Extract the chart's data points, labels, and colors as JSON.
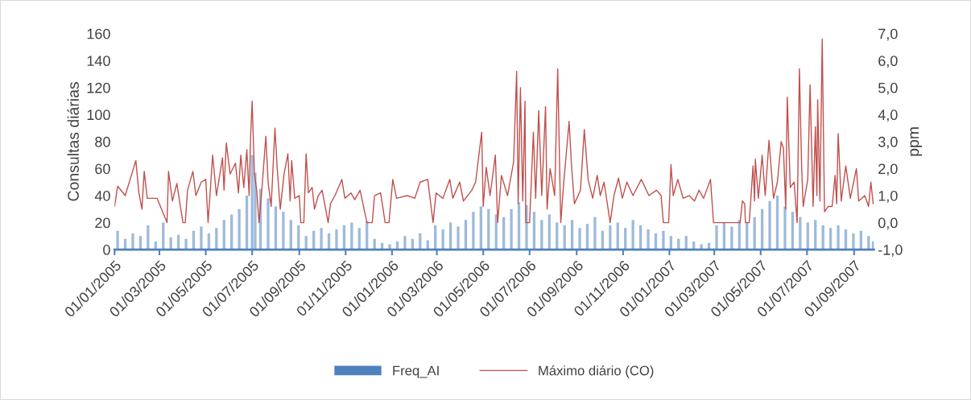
{
  "chart_data": {
    "type": "bar",
    "ylabel": "Consultas diárias",
    "y2label": "ppm",
    "xlim": [
      "2005-01-01",
      "2007-09-27"
    ],
    "xticks": [
      {
        "value": "2005-01-01",
        "label": "01/01/2005"
      },
      {
        "value": "2005-03-01",
        "label": "01/03/2005"
      },
      {
        "value": "2005-05-01",
        "label": "01/05/2005"
      },
      {
        "value": "2005-07-01",
        "label": "01/07/2005"
      },
      {
        "value": "2005-09-01",
        "label": "01/09/2005"
      },
      {
        "value": "2005-11-01",
        "label": "01/11/2005"
      },
      {
        "value": "2006-01-01",
        "label": "01/01/2006"
      },
      {
        "value": "2006-03-01",
        "label": "01/03/2006"
      },
      {
        "value": "2006-05-01",
        "label": "01/05/2006"
      },
      {
        "value": "2006-07-01",
        "label": "01/07/2006"
      },
      {
        "value": "2006-09-01",
        "label": "01/09/2006"
      },
      {
        "value": "2006-11-01",
        "label": "01/11/2006"
      },
      {
        "value": "2007-01-01",
        "label": "01/01/2007"
      },
      {
        "value": "2007-03-01",
        "label": "01/03/2007"
      },
      {
        "value": "2007-05-01",
        "label": "01/05/2007"
      },
      {
        "value": "2007-07-01",
        "label": "01/07/2007"
      },
      {
        "value": "2007-09-01",
        "label": "01/09/2007"
      }
    ],
    "ylim": [
      0,
      160
    ],
    "yticks": [
      0,
      20,
      40,
      60,
      80,
      100,
      120,
      140,
      160
    ],
    "y2lim": [
      -1,
      7
    ],
    "y2ticks": [
      {
        "value": -1,
        "label": "-1,0"
      },
      {
        "value": 0,
        "label": "0,0"
      },
      {
        "value": 1,
        "label": "1,0"
      },
      {
        "value": 2,
        "label": "2,0"
      },
      {
        "value": 3,
        "label": "3,0"
      },
      {
        "value": 4,
        "label": "4,0"
      },
      {
        "value": 5,
        "label": "5,0"
      },
      {
        "value": 6,
        "label": "6,0"
      },
      {
        "value": 7,
        "label": "7,0"
      }
    ],
    "legend": "bottom",
    "series": [
      {
        "name": "Freq_AI",
        "color": "#4f81bd",
        "x": [
          "2005-01-05",
          "2005-01-15",
          "2005-01-25",
          "2005-02-04",
          "2005-02-14",
          "2005-02-24",
          "2005-03-06",
          "2005-03-16",
          "2005-03-26",
          "2005-04-05",
          "2005-04-15",
          "2005-04-25",
          "2005-05-05",
          "2005-05-15",
          "2005-05-25",
          "2005-06-04",
          "2005-06-14",
          "2005-06-24",
          "2005-07-01",
          "2005-07-05",
          "2005-07-12",
          "2005-07-22",
          "2005-08-01",
          "2005-08-11",
          "2005-08-21",
          "2005-08-31",
          "2005-09-10",
          "2005-09-20",
          "2005-09-30",
          "2005-10-10",
          "2005-10-20",
          "2005-10-30",
          "2005-11-09",
          "2005-11-19",
          "2005-11-29",
          "2005-12-09",
          "2005-12-19",
          "2005-12-29",
          "2006-01-08",
          "2006-01-18",
          "2006-01-28",
          "2006-02-07",
          "2006-02-17",
          "2006-02-27",
          "2006-03-09",
          "2006-03-19",
          "2006-03-29",
          "2006-04-08",
          "2006-04-18",
          "2006-04-28",
          "2006-05-08",
          "2006-05-18",
          "2006-05-28",
          "2006-06-07",
          "2006-06-17",
          "2006-06-27",
          "2006-07-07",
          "2006-07-17",
          "2006-07-27",
          "2006-08-06",
          "2006-08-16",
          "2006-08-26",
          "2006-09-05",
          "2006-09-15",
          "2006-09-25",
          "2006-10-05",
          "2006-10-15",
          "2006-10-25",
          "2006-11-04",
          "2006-11-14",
          "2006-11-24",
          "2006-12-04",
          "2006-12-14",
          "2006-12-24",
          "2007-01-03",
          "2007-01-13",
          "2007-01-23",
          "2007-02-02",
          "2007-02-12",
          "2007-02-22",
          "2007-03-04",
          "2007-03-14",
          "2007-03-24",
          "2007-04-03",
          "2007-04-13",
          "2007-04-23",
          "2007-05-03",
          "2007-05-13",
          "2007-05-23",
          "2007-06-02",
          "2007-06-12",
          "2007-06-22",
          "2007-07-02",
          "2007-07-12",
          "2007-07-22",
          "2007-08-01",
          "2007-08-11",
          "2007-08-21",
          "2007-08-31",
          "2007-09-10",
          "2007-09-20",
          "2007-09-26"
        ],
        "values": [
          14,
          8,
          12,
          10,
          18,
          6,
          20,
          9,
          11,
          8,
          14,
          17,
          12,
          16,
          22,
          26,
          30,
          40,
          70,
          57,
          45,
          38,
          32,
          28,
          22,
          18,
          10,
          14,
          16,
          12,
          15,
          18,
          20,
          16,
          21,
          8,
          5,
          4,
          6,
          10,
          8,
          12,
          7,
          18,
          15,
          20,
          17,
          22,
          28,
          32,
          30,
          26,
          24,
          30,
          35,
          33,
          28,
          22,
          26,
          20,
          18,
          22,
          16,
          19,
          24,
          14,
          18,
          20,
          16,
          22,
          18,
          15,
          12,
          14,
          10,
          8,
          10,
          6,
          4,
          5,
          18,
          20,
          17,
          22,
          20,
          24,
          30,
          36,
          40,
          32,
          28,
          24,
          20,
          22,
          18,
          16,
          18,
          15,
          12,
          14,
          10,
          6
        ]
      },
      {
        "name": "Máximo diário (CO)",
        "type": "line",
        "axis": "y2",
        "color": "#c0504d",
        "x": [
          "2005-01-01",
          "2005-01-05",
          "2005-01-15",
          "2005-01-29",
          "2005-02-02",
          "2005-02-06",
          "2005-02-09",
          "2005-02-13",
          "2005-02-26",
          "2005-03-11",
          "2005-03-13",
          "2005-03-18",
          "2005-03-24",
          "2005-03-28",
          "2005-04-01",
          "2005-04-04",
          "2005-04-07",
          "2005-04-14",
          "2005-04-18",
          "2005-04-25",
          "2005-05-01",
          "2005-05-04",
          "2005-05-07",
          "2005-05-10",
          "2005-05-15",
          "2005-05-23",
          "2005-05-25",
          "2005-05-28",
          "2005-06-02",
          "2005-06-09",
          "2005-06-13",
          "2005-06-16",
          "2005-06-20",
          "2005-06-24",
          "2005-06-27",
          "2005-06-29",
          "2005-07-01",
          "2005-07-04",
          "2005-07-07",
          "2005-07-10",
          "2005-07-14",
          "2005-07-19",
          "2005-07-22",
          "2005-07-26",
          "2005-07-31",
          "2005-08-03",
          "2005-08-07",
          "2005-08-12",
          "2005-08-17",
          "2005-08-20",
          "2005-08-22",
          "2005-08-26",
          "2005-09-01",
          "2005-09-03",
          "2005-09-07",
          "2005-09-10",
          "2005-09-13",
          "2005-09-18",
          "2005-09-21",
          "2005-09-26",
          "2005-10-01",
          "2005-10-09",
          "2005-10-12",
          "2005-10-18",
          "2005-10-27",
          "2005-10-31",
          "2005-11-08",
          "2005-11-13",
          "2005-11-20",
          "2005-11-29",
          "2005-12-06",
          "2005-12-09",
          "2005-12-17",
          "2005-12-23",
          "2005-12-28",
          "2006-01-02",
          "2006-01-07",
          "2006-01-21",
          "2006-01-31",
          "2006-02-07",
          "2006-02-17",
          "2006-02-24",
          "2006-02-28",
          "2006-03-09",
          "2006-03-18",
          "2006-03-22",
          "2006-03-31",
          "2006-04-05",
          "2006-04-16",
          "2006-04-21",
          "2006-04-29",
          "2006-05-01",
          "2006-05-05",
          "2006-05-10",
          "2006-05-17",
          "2006-05-20",
          "2006-05-25",
          "2006-06-02",
          "2006-06-10",
          "2006-06-14",
          "2006-06-16",
          "2006-06-19",
          "2006-06-22",
          "2006-06-25",
          "2006-06-26",
          "2006-07-01",
          "2006-07-06",
          "2006-07-09",
          "2006-07-13",
          "2006-07-17",
          "2006-07-22",
          "2006-07-24",
          "2006-07-28",
          "2006-08-03",
          "2006-08-07",
          "2006-08-11",
          "2006-08-15",
          "2006-08-22",
          "2006-08-25",
          "2006-08-29",
          "2006-09-06",
          "2006-09-11",
          "2006-09-16",
          "2006-09-22",
          "2006-09-28",
          "2006-10-02",
          "2006-10-07",
          "2006-10-15",
          "2006-10-20",
          "2006-10-26",
          "2006-10-31",
          "2006-11-06",
          "2006-11-14",
          "2006-11-25",
          "2006-12-05",
          "2006-12-15",
          "2006-12-21",
          "2006-12-24",
          "2006-12-31",
          "2007-01-03",
          "2007-01-06",
          "2007-01-12",
          "2007-01-19",
          "2007-01-27",
          "2007-02-03",
          "2007-02-09",
          "2007-02-15",
          "2007-02-24",
          "2007-02-28",
          "2007-04-04",
          "2007-04-07",
          "2007-04-10",
          "2007-04-11",
          "2007-04-16",
          "2007-04-21",
          "2007-04-23",
          "2007-04-24",
          "2007-04-28",
          "2007-05-03",
          "2007-05-07",
          "2007-05-12",
          "2007-05-18",
          "2007-05-23",
          "2007-05-28",
          "2007-05-31",
          "2007-06-03",
          "2007-06-05",
          "2007-06-09",
          "2007-06-14",
          "2007-06-18",
          "2007-06-21",
          "2007-06-24",
          "2007-06-26",
          "2007-07-02",
          "2007-07-05",
          "2007-07-09",
          "2007-07-12",
          "2007-07-14",
          "2007-07-15",
          "2007-07-18",
          "2007-07-21",
          "2007-07-24",
          "2007-07-29",
          "2007-08-03",
          "2007-08-07",
          "2007-08-09",
          "2007-08-11",
          "2007-08-15",
          "2007-08-21",
          "2007-08-27",
          "2007-09-04",
          "2007-09-07",
          "2007-09-15",
          "2007-09-20",
          "2007-09-23",
          "2007-09-26"
        ],
        "values": [
          0.6,
          1.35,
          1.0,
          2.3,
          1.1,
          0.5,
          1.9,
          0.9,
          0.9,
          0,
          1.9,
          0.8,
          1.45,
          0.7,
          0,
          0,
          1.2,
          1.9,
          1.0,
          1.5,
          1.6,
          0,
          1.2,
          2.5,
          1.0,
          2.4,
          1.2,
          2.95,
          1.8,
          2.2,
          1.1,
          2.5,
          1.3,
          2.7,
          1.0,
          3.2,
          4.5,
          1.8,
          1.2,
          0,
          1.3,
          3.2,
          1.5,
          0.6,
          3.5,
          2.0,
          0.5,
          1.8,
          2.55,
          0.8,
          2.3,
          0.9,
          1.0,
          0,
          0,
          2.55,
          1.1,
          1.3,
          0.5,
          1.0,
          1.2,
          0,
          0.7,
          1.0,
          1.6,
          0.9,
          1.1,
          0.85,
          1.2,
          0,
          0,
          1.0,
          1.1,
          0,
          0,
          1.6,
          0.9,
          1.0,
          0.9,
          1.5,
          1.6,
          0,
          1.1,
          0.9,
          1.6,
          0.9,
          1.5,
          0.8,
          1.2,
          1.5,
          3.35,
          0.6,
          2.05,
          1.0,
          2.5,
          0,
          1.75,
          1.0,
          2.25,
          5.6,
          0.7,
          5.0,
          0.8,
          4.5,
          0,
          0,
          3.35,
          0.9,
          4.15,
          1.0,
          4.3,
          0.5,
          2.0,
          1.0,
          5.7,
          0,
          1.5,
          3.75,
          2.2,
          0.7,
          1.2,
          3.45,
          1.6,
          0.9,
          1.75,
          1.0,
          1.5,
          0,
          1.0,
          1.65,
          0.9,
          1.5,
          1.0,
          1.6,
          1.0,
          1.2,
          1.0,
          0,
          0,
          2.15,
          1.0,
          1.6,
          0.9,
          1.0,
          0.8,
          1.2,
          0.9,
          1.6,
          0,
          0,
          0.8,
          0.7,
          0,
          0,
          2.1,
          0.8,
          2.35,
          0.9,
          2.5,
          1.0,
          3.05,
          0.9,
          1.5,
          3.0,
          2.75,
          0.5,
          4.65,
          1.3,
          1.5,
          0,
          5.7,
          2.0,
          0.6,
          1.6,
          5.1,
          0.6,
          3.55,
          1.0,
          4.55,
          0.8,
          6.8,
          0.4,
          0.6,
          0.6,
          1.75,
          0.7,
          3.3,
          0.8,
          2.1,
          0.9,
          2.0,
          0.8,
          1.0,
          0.6,
          1.5,
          0.7
        ]
      }
    ]
  }
}
